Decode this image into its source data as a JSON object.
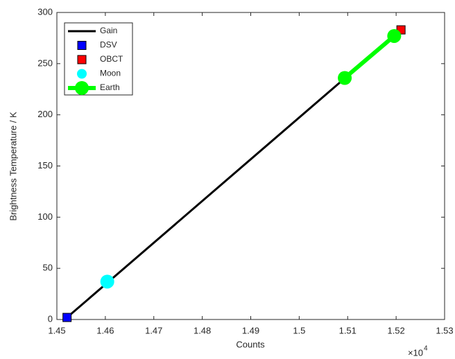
{
  "chart_data": {
    "type": "line",
    "x_label": "Counts",
    "y_label": "Brightness Temperature / K",
    "x_multiplier": "×10",
    "x_exponent": "4",
    "xlim": [
      1.45,
      1.53
    ],
    "xticks": [
      1.45,
      1.46,
      1.47,
      1.48,
      1.49,
      1.5,
      1.51,
      1.52,
      1.53
    ],
    "ylim": [
      0,
      300
    ],
    "yticks": [
      0,
      50,
      100,
      150,
      200,
      250,
      300
    ],
    "legend": "upper-left",
    "series": [
      {
        "name": "Gain",
        "color": "#000000",
        "line_width": 3,
        "marker": "none",
        "x": [
          1.4521,
          1.521
        ],
        "values": [
          2,
          283
        ]
      },
      {
        "name": "DSV",
        "color": "#0000ff",
        "line_width": 0,
        "marker": "square",
        "x": [
          1.4521
        ],
        "values": [
          2
        ]
      },
      {
        "name": "OBCT",
        "color": "#ff0000",
        "line_width": 0,
        "marker": "square",
        "x": [
          1.521
        ],
        "values": [
          283
        ]
      },
      {
        "name": "Moon",
        "color": "#00ffff",
        "line_width": 0,
        "marker": "circle",
        "x": [
          1.4604
        ],
        "values": [
          37
        ]
      },
      {
        "name": "Earth",
        "color": "#00ff00",
        "line_width": 6,
        "marker": "circle",
        "x": [
          1.5094,
          1.5196
        ],
        "values": [
          236,
          277
        ]
      }
    ]
  }
}
